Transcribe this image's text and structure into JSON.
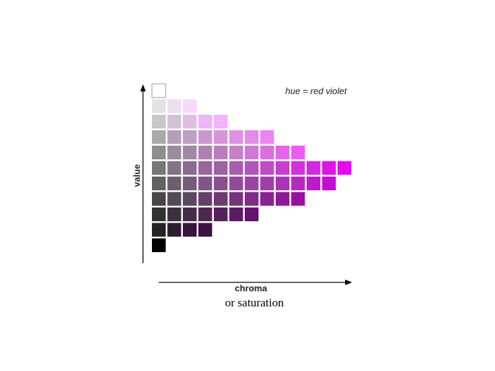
{
  "hue_label": "hue = red violet",
  "axis": {
    "y_label": "value",
    "x_label": "chroma",
    "caption": "or saturation"
  },
  "swatch_rows": [
    [
      "#ffffff"
    ],
    [
      "#e3e3e3",
      "#ecdff0",
      "#f8d8fc"
    ],
    [
      "#c8c8c8",
      "#d3c2d6",
      "#e0bde4",
      "#ecb6f2",
      "#f3b3f8"
    ],
    [
      "#aaaaaa",
      "#b39fb6",
      "#c09fc4",
      "#ca98ce",
      "#d495d9",
      "#dd91e3",
      "#e48ae9",
      "#eb85f1"
    ],
    [
      "#8e8e8e",
      "#988d9a",
      "#a287a6",
      "#ad81b1",
      "#b97ebd",
      "#c77fcc",
      "#d177d7",
      "#db6ee1",
      "#e366ea",
      "#ec5cf2"
    ],
    [
      "#777777",
      "#817484",
      "#8d6c91",
      "#97669b",
      "#9f62a4",
      "#aa5cb1",
      "#b354bb",
      "#bf4bc7",
      "#c93ed2",
      "#cf34d9",
      "#d32ae0",
      "#db16e7",
      "#e30aef"
    ],
    [
      "#616161",
      "#6d5f6f",
      "#765b7a",
      "#7f5684",
      "#89508e",
      "#924b98",
      "#9b45a2",
      "#a23eab",
      "#aa34b4",
      "#b32abd",
      "#bb1cc6",
      "#c30ecf"
    ],
    [
      "#474747",
      "#534b55",
      "#5d4762",
      "#66406b",
      "#6e3a74",
      "#77337d",
      "#7f2c87",
      "#862490",
      "#8f1a99",
      "#98109f"
    ],
    [
      "#333333",
      "#3c2f3f",
      "#452c49",
      "#4d2752",
      "#55215b",
      "#5d1a64",
      "#65136d"
    ],
    [
      "#232323",
      "#2e1c31",
      "#36163a",
      "#3e1043"
    ],
    [
      "#000000"
    ]
  ]
}
